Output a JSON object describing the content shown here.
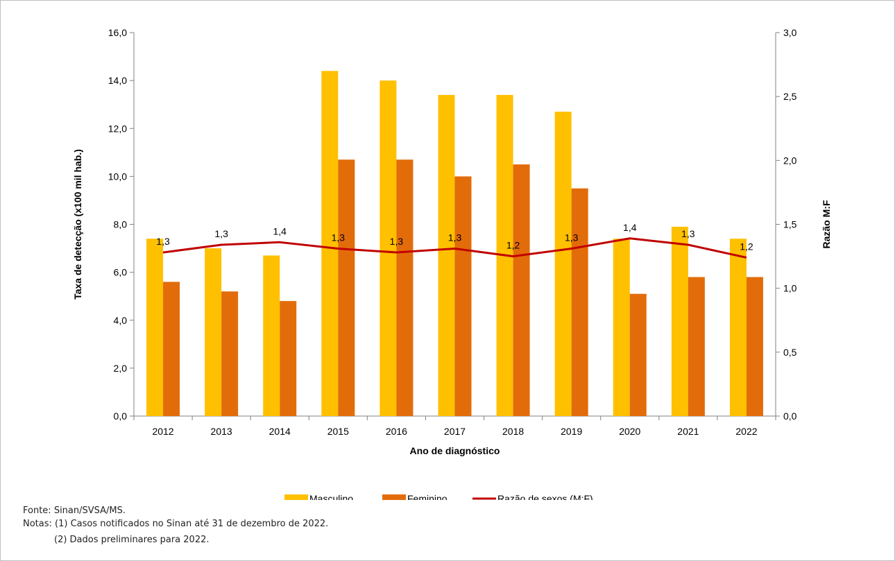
{
  "notes": {
    "source": "Fonte: Sinan/SVSA/MS.",
    "note1": "Notas: (1) Casos notificados no Sinan até 31 de dezembro de 2022.",
    "note2": "(2) Dados preliminares para 2022."
  },
  "chart_data": {
    "type": "bar",
    "title": "",
    "xlabel": "Ano de diagnóstico",
    "ylabel": "Taxa de detecção (x100 mil hab.)",
    "y2label": "Razão M:F",
    "ylim": [
      0,
      16
    ],
    "y2lim": [
      0,
      3
    ],
    "yticks": [
      "0,0",
      "2,0",
      "4,0",
      "6,0",
      "8,0",
      "10,0",
      "12,0",
      "14,0",
      "16,0"
    ],
    "y2ticks": [
      "0,0",
      "0,5",
      "1,0",
      "1,5",
      "2,0",
      "2,5",
      "3,0"
    ],
    "categories": [
      "2012",
      "2013",
      "2014",
      "2015",
      "2016",
      "2017",
      "2018",
      "2019",
      "2020",
      "2021",
      "2022"
    ],
    "series": [
      {
        "name": "Masculino",
        "kind": "bar",
        "axis": "left",
        "color": "#ffc000",
        "values": [
          7.4,
          7.0,
          6.7,
          14.4,
          14.0,
          13.4,
          13.4,
          12.7,
          7.4,
          7.9,
          7.4
        ]
      },
      {
        "name": "Feminino",
        "kind": "bar",
        "axis": "left",
        "color": "#e36c0a",
        "values": [
          5.6,
          5.2,
          4.8,
          10.7,
          10.7,
          10.0,
          10.5,
          9.5,
          5.1,
          5.8,
          5.8
        ]
      },
      {
        "name": "Razão de sexos (M:F)",
        "kind": "line",
        "axis": "right",
        "color": "#c00000",
        "values": [
          1.28,
          1.34,
          1.36,
          1.31,
          1.28,
          1.31,
          1.25,
          1.31,
          1.39,
          1.34,
          1.24
        ],
        "labels": [
          "1,3",
          "1,3",
          "1,4",
          "1,3",
          "1,3",
          "1,3",
          "1,2",
          "1,3",
          "1,4",
          "1,3",
          "1,2"
        ]
      }
    ],
    "legend_position": "bottom",
    "grid": false
  }
}
